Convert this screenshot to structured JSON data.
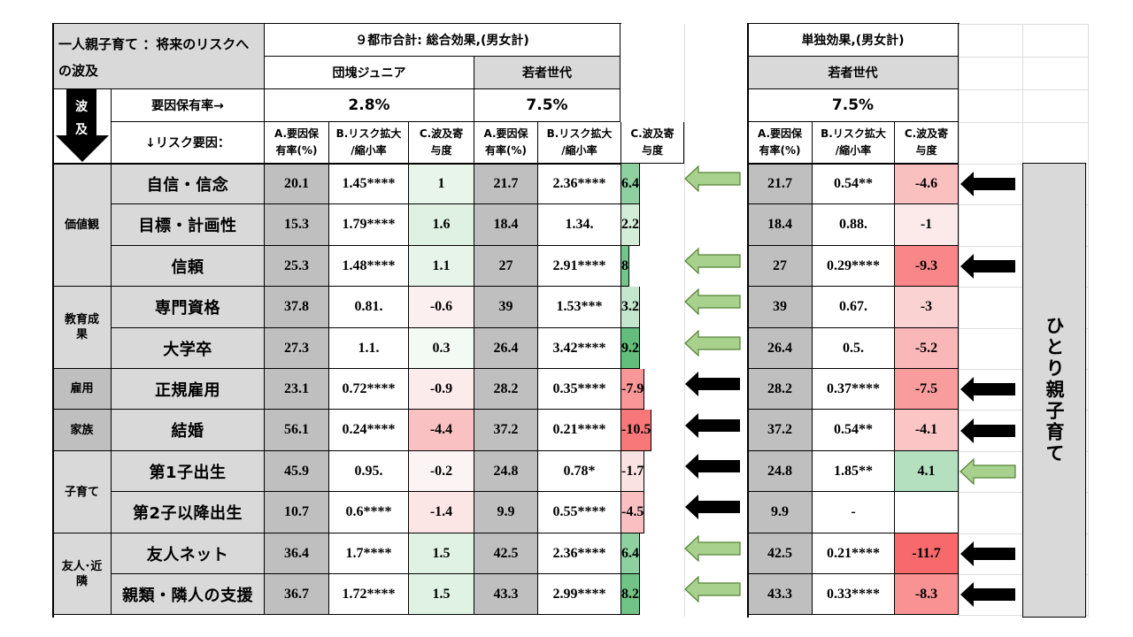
{
  "title": "一人親子育て ：将来のリスクへの波及",
  "wave_label": "波\n及",
  "row_labels": {
    "rate": "要因保有率→",
    "risk": "↓リスク要因："
  },
  "sec1": {
    "title": "９都市合計: 総合効果,(男女計)"
  },
  "sec2": {
    "title": "単独効果,(男女計)"
  },
  "groups": {
    "dankai": {
      "name": "団塊ジュニア",
      "rate": "2.8%"
    },
    "wakamono": {
      "name": "若者世代",
      "rate": "7.5%"
    },
    "wakamono2": {
      "name": "若者世代",
      "rate": "7.5%"
    }
  },
  "col_headers": {
    "a": "A.要因保\n有率(%)",
    "b": "B.リスク拡大\n/縮小率",
    "c": "C.波及寄\n与度"
  },
  "categories": [
    {
      "label": "価値観"
    },
    {
      "label": "教育成\n果"
    },
    {
      "label": "雇用"
    },
    {
      "label": "家族"
    },
    {
      "label": "子育て"
    },
    {
      "label": "友人･近\n隣"
    }
  ],
  "rows": [
    {
      "item": "自信・信念",
      "d": [
        "20.1",
        "1.45****",
        "1"
      ],
      "w": [
        "21.7",
        "2.36****",
        "6.4"
      ],
      "s": [
        "21.7",
        "0.54**",
        "-4.6"
      ],
      "arrow1": "green",
      "arrow2": "black"
    },
    {
      "item": "目標・計画性",
      "d": [
        "15.3",
        "1.79****",
        "1.6"
      ],
      "w": [
        "18.4",
        "1.34.",
        "2.2"
      ],
      "s": [
        "18.4",
        "0.88.",
        "-1"
      ],
      "arrow1": "none",
      "arrow2": "none"
    },
    {
      "item": "信頼",
      "d": [
        "25.3",
        "1.48****",
        "1.1"
      ],
      "w": [
        "27",
        "2.91****",
        "8"
      ],
      "s": [
        "27",
        "0.29****",
        "-9.3"
      ],
      "arrow1": "green",
      "arrow2": "black"
    },
    {
      "item": "専門資格",
      "d": [
        "37.8",
        "0.81.",
        "-0.6"
      ],
      "w": [
        "39",
        "1.53***",
        "3.2"
      ],
      "s": [
        "39",
        "0.67.",
        "-3"
      ],
      "arrow1": "green",
      "arrow2": "none"
    },
    {
      "item": "大学卒",
      "d": [
        "27.3",
        "1.1.",
        "0.3"
      ],
      "w": [
        "26.4",
        "3.42****",
        "9.2"
      ],
      "s": [
        "26.4",
        "0.5.",
        "-5.2"
      ],
      "arrow1": "green",
      "arrow2": "none"
    },
    {
      "item": "正規雇用",
      "d": [
        "23.1",
        "0.72****",
        "-0.9"
      ],
      "w": [
        "28.2",
        "0.35****",
        "-7.9"
      ],
      "s": [
        "28.2",
        "0.37****",
        "-7.5"
      ],
      "arrow1": "black",
      "arrow2": "black"
    },
    {
      "item": "結婚",
      "d": [
        "56.1",
        "0.24****",
        "-4.4"
      ],
      "w": [
        "37.2",
        "0.21****",
        "-10.5"
      ],
      "s": [
        "37.2",
        "0.54**",
        "-4.1"
      ],
      "arrow1": "black",
      "arrow2": "black"
    },
    {
      "item": "第1子出生",
      "d": [
        "45.9",
        "0.95.",
        "-0.2"
      ],
      "w": [
        "24.8",
        "0.78*",
        "-1.7"
      ],
      "s": [
        "24.8",
        "1.85**",
        "4.1"
      ],
      "arrow1": "black",
      "arrow2": "green"
    },
    {
      "item": "第2子以降出生",
      "d": [
        "10.7",
        "0.6****",
        "-1.4"
      ],
      "w": [
        "9.9",
        "0.55****",
        "-4.5"
      ],
      "s": [
        "9.9",
        "-",
        ""
      ],
      "arrow1": "black",
      "arrow2": "none"
    },
    {
      "item": "友人ネット",
      "d": [
        "36.4",
        "1.7****",
        "1.5"
      ],
      "w": [
        "42.5",
        "2.36****",
        "6.4"
      ],
      "s": [
        "42.5",
        "0.21****",
        "-11.7"
      ],
      "arrow1": "green",
      "arrow2": "black"
    },
    {
      "item": "親類・隣人の支援",
      "d": [
        "36.7",
        "1.72****",
        "1.5"
      ],
      "w": [
        "43.3",
        "2.99****",
        "8.2"
      ],
      "s": [
        "43.3",
        "0.33****",
        "-8.3"
      ],
      "arrow1": "green",
      "arrow2": "black"
    }
  ],
  "side_label": "ひとり親子育て",
  "colors": {
    "arrow_green_fill": "#a9d18e",
    "arrow_green_stroke": "#548235",
    "arrow_black": "#000000"
  }
}
